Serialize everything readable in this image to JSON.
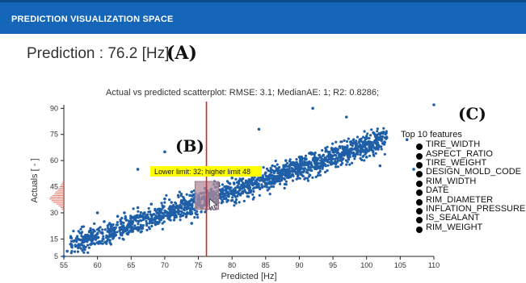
{
  "header": {
    "title": "PREDICTION VISUALIZATION SPACE"
  },
  "prediction": {
    "text": "Prediction : 76.2 [Hz]"
  },
  "annotations": {
    "a": "(A)",
    "b": "(B)",
    "c": "(C)"
  },
  "features": {
    "title": "Top 10 features",
    "items": [
      "TIRE_WIDTH",
      "ASPECT_RATIO",
      "TIRE_WEIGHT",
      "DESIGN_MOLD_CODE",
      "RIM_WIDTH",
      "DATE",
      "RIM_DIAMETER",
      "INFLATION_PRESSURE",
      "IS_SEALANT",
      "RIM_WEIGHT"
    ]
  },
  "colors": {
    "header": "#1565b8",
    "points": "#1f5fa8",
    "prediction_line": "#e02020",
    "tooltip": "#ffff00",
    "band": "#b08a9a",
    "histogram": "#e07060"
  },
  "chart_data": {
    "type": "scatter",
    "title": "Actual vs predicted scatterplot: RMSE: 3.1; MedianAE: 1; R2: 0.8286;",
    "xlabel": "Predicted [Hz]",
    "ylabel": "Actuals [ - ]",
    "xlim": [
      55,
      110
    ],
    "ylim": [
      5,
      92
    ],
    "x_ticks": [
      55,
      60,
      65,
      70,
      75,
      80,
      85,
      90,
      95,
      100,
      105,
      110
    ],
    "y_ticks": [
      5,
      15,
      30,
      45,
      60,
      75,
      90
    ],
    "prediction_value": 76.2,
    "tooltip": "Lower limit: 32; higher limit 48",
    "band": {
      "x": [
        74.5,
        78
      ],
      "y": [
        32,
        48
      ]
    },
    "histogram": {
      "y": [
        32,
        33,
        34,
        35,
        36,
        37,
        38,
        39,
        40,
        41,
        42,
        43,
        44,
        45,
        46,
        47,
        48
      ],
      "counts": [
        2,
        3,
        5,
        7,
        10,
        12,
        14,
        13,
        11,
        9,
        8,
        6,
        5,
        4,
        3,
        2,
        1
      ]
    },
    "series": [
      {
        "points": [
          [
            55,
            5
          ],
          [
            55.5,
            8
          ],
          [
            56,
            12
          ],
          [
            57,
            11
          ],
          [
            58,
            16
          ],
          [
            59,
            20
          ],
          [
            60,
            18
          ],
          [
            61,
            25
          ],
          [
            62,
            22
          ],
          [
            63,
            28
          ],
          [
            64,
            30
          ],
          [
            65,
            27
          ],
          [
            66,
            33
          ],
          [
            67,
            30
          ],
          [
            68,
            35
          ],
          [
            69,
            32
          ],
          [
            70,
            38
          ],
          [
            71,
            36
          ],
          [
            72,
            40
          ],
          [
            73,
            37
          ],
          [
            74,
            42
          ],
          [
            75,
            40
          ],
          [
            76,
            44
          ],
          [
            77,
            42
          ],
          [
            78,
            47
          ],
          [
            79,
            45
          ],
          [
            80,
            50
          ],
          [
            81,
            48
          ],
          [
            82,
            52
          ],
          [
            83,
            50
          ],
          [
            84,
            55
          ],
          [
            85,
            53
          ],
          [
            86,
            57
          ],
          [
            87,
            56
          ],
          [
            88,
            60
          ],
          [
            89,
            58
          ],
          [
            90,
            62
          ],
          [
            91,
            61
          ],
          [
            92,
            64
          ],
          [
            93,
            63
          ],
          [
            94,
            66
          ],
          [
            95,
            65
          ],
          [
            96,
            68
          ],
          [
            97,
            67
          ],
          [
            98,
            70
          ],
          [
            99,
            72
          ],
          [
            100,
            74
          ],
          [
            101,
            76
          ],
          [
            102,
            75
          ],
          [
            103,
            73
          ],
          [
            106,
            72
          ],
          [
            107,
            55
          ],
          [
            110,
            92
          ],
          [
            102,
            57
          ],
          [
            100,
            62
          ],
          [
            97,
            85
          ],
          [
            70,
            65
          ],
          [
            74,
            24
          ],
          [
            62,
            12
          ],
          [
            66,
            55
          ],
          [
            92,
            90
          ],
          [
            60,
            30
          ],
          [
            84,
            78
          ]
        ]
      }
    ]
  }
}
